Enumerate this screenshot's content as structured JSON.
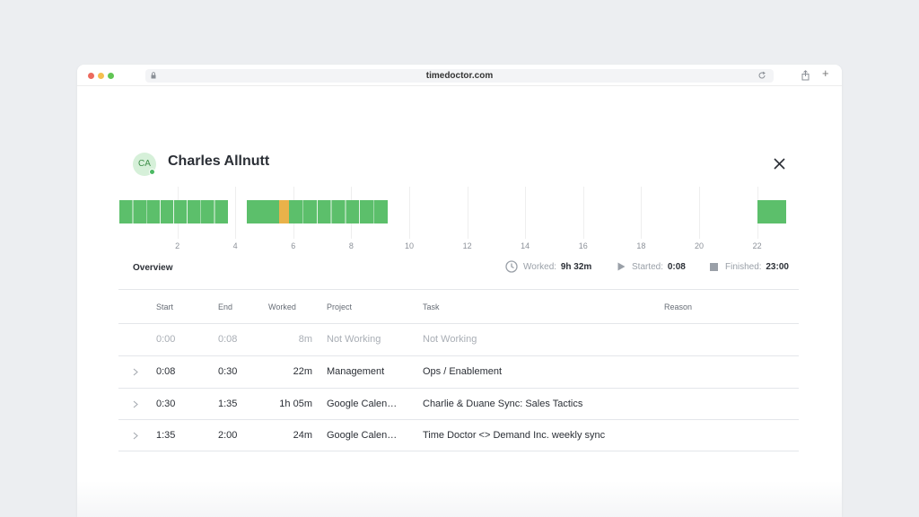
{
  "browser": {
    "url": "timedoctor.com"
  },
  "user": {
    "initials": "CA",
    "name": "Charles Allnutt"
  },
  "timeline": {
    "range_hours": [
      0,
      23
    ],
    "tick_labels": [
      "2",
      "4",
      "6",
      "8",
      "10",
      "12",
      "14",
      "16",
      "18",
      "20",
      "22"
    ],
    "segments": [
      {
        "start": 0.0,
        "end": 3.75,
        "status": "working"
      },
      {
        "start": 4.4,
        "end": 5.5,
        "status": "working"
      },
      {
        "start": 5.5,
        "end": 5.85,
        "status": "idle"
      },
      {
        "start": 5.85,
        "end": 9.25,
        "status": "working"
      },
      {
        "start": 22.0,
        "end": 23.0,
        "status": "working"
      }
    ],
    "colors": {
      "working": "#5cbf6b",
      "idle": "#e9b24a"
    }
  },
  "overview": {
    "label": "Overview",
    "worked_label": "Worked:",
    "worked_value": "9h 32m",
    "started_label": "Started:",
    "started_value": "0:08",
    "finished_label": "Finished:",
    "finished_value": "23:00"
  },
  "table": {
    "headers": {
      "start": "Start",
      "end": "End",
      "worked": "Worked",
      "project": "Project",
      "task": "Task",
      "reason": "Reason"
    },
    "rows": [
      {
        "start": "0:00",
        "end": "0:08",
        "worked": "8m",
        "project": "Not Working",
        "task": "Not Working"
      },
      {
        "start": "0:08",
        "end": "0:30",
        "worked": "22m",
        "project": "Management",
        "task": "Ops / Enablement"
      },
      {
        "start": "0:30",
        "end": "1:35",
        "worked": "1h 05m",
        "project": "Google Calen…",
        "task": "Charlie & Duane Sync: Sales Tactics"
      },
      {
        "start": "1:35",
        "end": "2:00",
        "worked": "24m",
        "project": "Google Calen…",
        "task": "Time Doctor <> Demand Inc. weekly sync"
      }
    ]
  }
}
